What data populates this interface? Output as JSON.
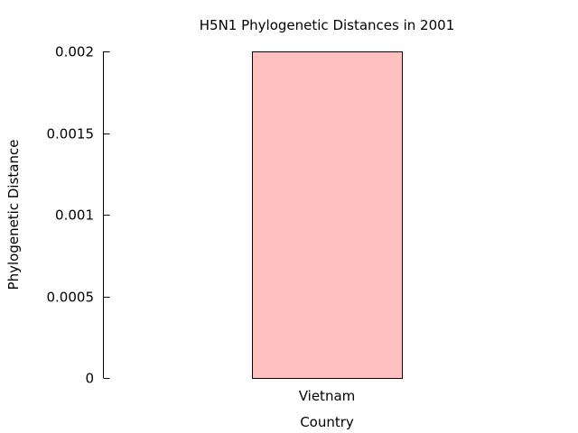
{
  "chart_data": {
    "type": "bar",
    "title": "H5N1 Phylogenetic Distances in 2001",
    "xlabel": "Country",
    "ylabel": "Phylogenetic Distance",
    "categories": [
      "Vietnam"
    ],
    "values": [
      0.002
    ],
    "ylim": [
      0,
      0.002
    ],
    "yticks": [
      0,
      0.0005,
      0.001,
      0.0015,
      0.002
    ],
    "ytick_labels": [
      "0",
      "0.0005",
      "0.001",
      "0.0015",
      "0.002"
    ],
    "grid": false,
    "bar_color": "#ffc0c0",
    "bar_edge_color": "#000000"
  }
}
